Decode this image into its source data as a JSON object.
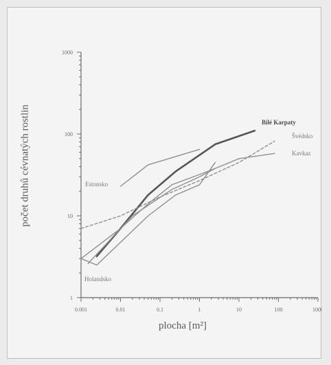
{
  "chart_data": {
    "type": "line",
    "title": "",
    "xlabel": "plocha [m²]",
    "ylabel": "počet druhů cévnatých rostlin",
    "x_scale": "log",
    "y_scale": "log",
    "xlim": [
      0.001,
      1000
    ],
    "ylim": [
      1,
      1000
    ],
    "x_ticks": [
      "0.001",
      "0.01",
      "0.1",
      "1",
      "10",
      "100",
      "1000"
    ],
    "y_ticks": [
      "1",
      "10",
      "100",
      "1000"
    ],
    "grid": false,
    "series": [
      {
        "name": "Bílé Karpaty",
        "style": "thick",
        "color": "#555555",
        "x": [
          0.0025,
          0.01,
          0.05,
          0.25,
          2.5,
          25
        ],
        "y": [
          3.2,
          7,
          18,
          35,
          75,
          110
        ]
      },
      {
        "name": "Estonsko",
        "style": "thin",
        "color": "#8f8f8f",
        "x": [
          0.01,
          0.05,
          1.0
        ],
        "y": [
          23,
          42,
          65
        ]
      },
      {
        "name": "Švédsko",
        "style": "dashed",
        "color": "#8f8f8f",
        "x": [
          0.001,
          0.01,
          0.1,
          1,
          10,
          80
        ],
        "y": [
          7,
          10,
          17,
          27,
          45,
          82
        ]
      },
      {
        "name": "Kavkaz",
        "style": "thin",
        "color": "#8f8f8f",
        "x": [
          0.001,
          0.01,
          0.05,
          0.2,
          1,
          2.5,
          10,
          80
        ],
        "y": [
          3,
          7,
          14,
          24,
          32,
          38,
          50,
          58
        ]
      },
      {
        "name": "Holandsko",
        "style": "thin",
        "color": "#8f8f8f",
        "x": [
          0.0015,
          0.02,
          0.2,
          1,
          2.5
        ],
        "y": [
          2.6,
          10,
          21,
          30,
          38
        ]
      },
      {
        "name": "",
        "style": "thin",
        "color": "#8f8f8f",
        "x": [
          0.001,
          0.0025,
          0.05,
          0.25,
          1,
          2.5
        ],
        "y": [
          3.0,
          2.5,
          10,
          18,
          24,
          45
        ]
      }
    ]
  }
}
